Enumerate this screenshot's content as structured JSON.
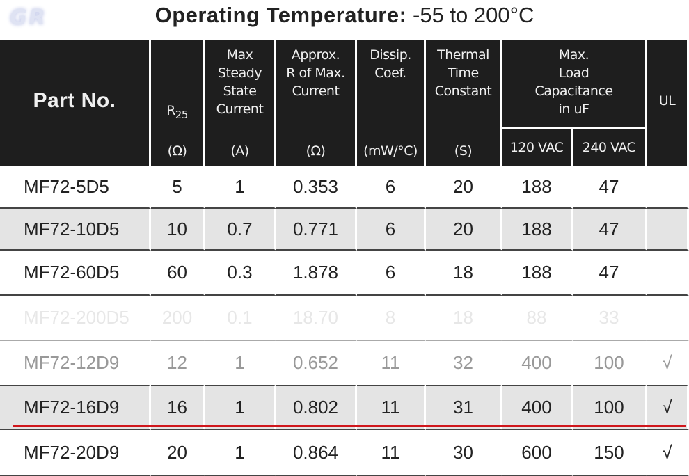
{
  "header": {
    "logo": "GR",
    "title_label": "Operating Temperature:",
    "title_value": "-55 to 200°C"
  },
  "table": {
    "columns": [
      {
        "label_lines": [
          "Part No."
        ]
      },
      {
        "label_base": "R",
        "label_sub": "25",
        "unit": "(Ω)"
      },
      {
        "label_lines": [
          "Max",
          "Steady",
          "State",
          "Current"
        ],
        "unit": "(A)"
      },
      {
        "label_lines": [
          "Approx.",
          "R of Max.",
          "Current"
        ],
        "unit": "(Ω)"
      },
      {
        "label_lines": [
          "Dissip.",
          "Coef."
        ],
        "unit": "(mW/°C)"
      },
      {
        "label_lines": [
          "Thermal",
          "Time",
          "Constant"
        ],
        "unit": "(S)"
      },
      {
        "label_lines": [
          "Max.",
          "Load",
          "Capacitance",
          "in uF"
        ],
        "sub_columns": [
          "120 VAC",
          "240 VAC"
        ]
      },
      {
        "label_lines": [
          "UL"
        ]
      }
    ],
    "rows": [
      [
        "MF72-5D5",
        "5",
        "1",
        "0.353",
        "6",
        "20",
        "188",
        "47"
      ],
      [
        "MF72-10D5",
        "10",
        "0.7",
        "0.771",
        "6",
        "20",
        "188",
        "47"
      ],
      [
        "MF72-60D5",
        "60",
        "0.3",
        "1.878",
        "6",
        "18",
        "188",
        "47"
      ],
      [
        "MF72-200D5",
        "200",
        "0.1",
        "18.70",
        "8",
        "18",
        "88",
        "33"
      ],
      [
        "MF72-12D9",
        "12",
        "1",
        "0.652",
        "11",
        "32",
        "400",
        "100",
        "√"
      ],
      [
        "MF72-16D9",
        "16",
        "1",
        "0.802",
        "11",
        "31",
        "400",
        "100",
        "√"
      ],
      [
        "MF72-20D9",
        "20",
        "1",
        "0.864",
        "11",
        "30",
        "600",
        "150",
        "√"
      ]
    ]
  }
}
